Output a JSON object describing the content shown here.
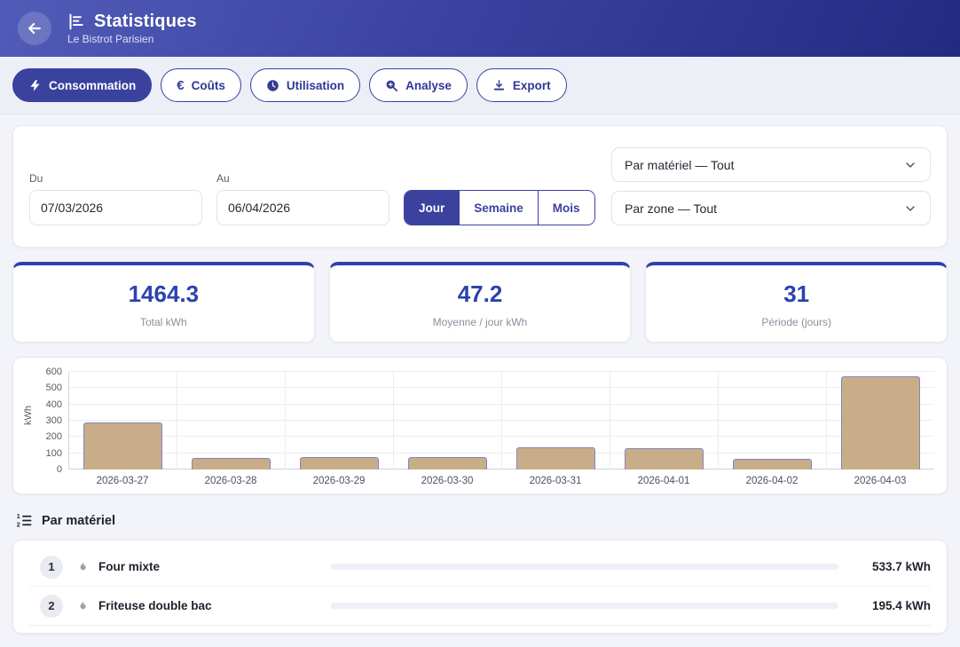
{
  "header": {
    "title": "Statistiques",
    "subtitle": "Le Bistrot Parisien"
  },
  "tabs": [
    {
      "label": "Consommation",
      "icon": "lightning-icon",
      "active": true
    },
    {
      "label": "Coûts",
      "icon": "euro-icon",
      "active": false
    },
    {
      "label": "Utilisation",
      "icon": "clock-icon",
      "active": false
    },
    {
      "label": "Analyse",
      "icon": "zoom-in-icon",
      "active": false
    },
    {
      "label": "Export",
      "icon": "download-icon",
      "active": false
    }
  ],
  "filters": {
    "from_label": "Du",
    "from_value": "07/03/2026",
    "to_label": "Au",
    "to_value": "06/04/2026",
    "granularity": [
      {
        "label": "Jour",
        "active": true
      },
      {
        "label": "Semaine",
        "active": false
      },
      {
        "label": "Mois",
        "active": false
      }
    ],
    "material_select": "Par matériel — Tout",
    "zone_select": "Par zone — Tout"
  },
  "stats": [
    {
      "value": "1464.3",
      "label": "Total kWh"
    },
    {
      "value": "47.2",
      "label": "Moyenne / jour kWh"
    },
    {
      "value": "31",
      "label": "Période (jours)"
    }
  ],
  "chart_data": {
    "type": "bar",
    "categories": [
      "2026-03-27",
      "2026-03-28",
      "2026-03-29",
      "2026-03-30",
      "2026-03-31",
      "2026-04-01",
      "2026-04-02",
      "2026-04-03"
    ],
    "values": [
      290,
      73,
      78,
      75,
      137,
      129,
      65,
      575
    ],
    "title": "",
    "xlabel": "",
    "ylabel": "kWh",
    "ylim": [
      0,
      600
    ],
    "yticks": [
      0,
      100,
      200,
      300,
      400,
      500,
      600
    ],
    "grid": true,
    "legend": "none",
    "bar_color": "#c9ad88",
    "bar_border_color": "#8086c5"
  },
  "material_section": {
    "heading": "Par matériel",
    "unit": "kWh",
    "items": [
      {
        "rank": "1",
        "name": "Four mixte",
        "value": "533.7 kWh"
      },
      {
        "rank": "2",
        "name": "Friteuse double bac",
        "value": "195.4 kWh"
      }
    ]
  },
  "colors": {
    "header_gradient_start": "#515cb8",
    "header_gradient_end": "#232a82",
    "accent": "#3a429e",
    "stat_value": "#2b43ae",
    "bar_fill": "#c9ad88",
    "bar_border": "#8086c5"
  }
}
